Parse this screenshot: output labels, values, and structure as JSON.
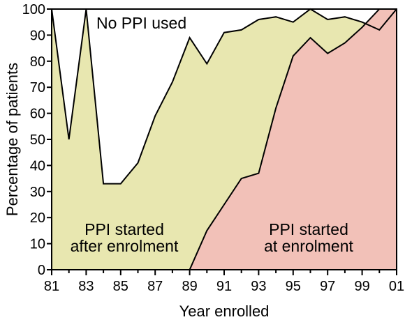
{
  "chart_data": {
    "type": "area",
    "xlabel": "Year enrolled",
    "ylabel": "Percentage of patients",
    "xlim": [
      1981,
      2001
    ],
    "ylim": [
      0,
      100
    ],
    "x": [
      1981,
      1982,
      1983,
      1984,
      1985,
      1986,
      1987,
      1988,
      1989,
      1990,
      1991,
      1992,
      1993,
      1994,
      1995,
      1996,
      1997,
      1998,
      1999,
      2000,
      2001
    ],
    "x_ticks": [
      1981,
      1983,
      1985,
      1987,
      1989,
      1991,
      1993,
      1995,
      1997,
      1999,
      2001
    ],
    "x_tick_labels": [
      "81",
      "83",
      "85",
      "87",
      "89",
      "91",
      "93",
      "95",
      "97",
      "99",
      "01"
    ],
    "y_ticks": [
      0,
      10,
      20,
      30,
      40,
      50,
      60,
      70,
      80,
      90,
      100
    ],
    "y_tick_labels": [
      "0",
      "10",
      "20",
      "30",
      "40",
      "50",
      "60",
      "70",
      "80",
      "90",
      "100"
    ],
    "series": [
      {
        "name": "PPI started at enrolment",
        "color": "#f2c1b8",
        "values": [
          0,
          0,
          0,
          0,
          0,
          0,
          0,
          0,
          0,
          15,
          25,
          35,
          37,
          62,
          82,
          89,
          83,
          87,
          93,
          100,
          100
        ]
      },
      {
        "name": "PPI started after enrolment",
        "color": "#e8e7b0",
        "values_cumulative": [
          100,
          50,
          100,
          33,
          33,
          41,
          59,
          72,
          89,
          79,
          91,
          92,
          96,
          97,
          95,
          100,
          96,
          97,
          95,
          92,
          100
        ]
      },
      {
        "name": "No PPI used",
        "color": "#ffffff"
      }
    ],
    "annotations": {
      "no_ppi": "No PPI used",
      "after_line1": "PPI started",
      "after_line2": "after enrolment",
      "at_line1": "PPI started",
      "at_line2": "at enrolment"
    }
  }
}
